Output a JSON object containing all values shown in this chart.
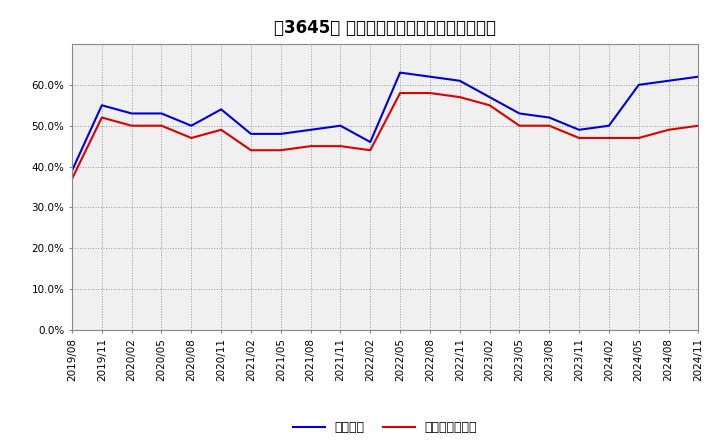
{
  "title": "［3645］ 固定比率、固定長期適合率の推移",
  "x_labels": [
    "2019/08",
    "2019/11",
    "2020/02",
    "2020/05",
    "2020/08",
    "2020/11",
    "2021/02",
    "2021/05",
    "2021/08",
    "2021/11",
    "2022/02",
    "2022/05",
    "2022/08",
    "2022/11",
    "2023/02",
    "2023/05",
    "2023/08",
    "2023/11",
    "2024/02",
    "2024/05",
    "2024/08",
    "2024/11"
  ],
  "blue_values": [
    0.39,
    0.55,
    0.53,
    0.53,
    0.5,
    0.54,
    0.48,
    0.48,
    0.49,
    0.5,
    0.46,
    0.63,
    0.62,
    0.61,
    0.57,
    0.53,
    0.52,
    0.49,
    0.5,
    0.6,
    0.61,
    0.62
  ],
  "red_values": [
    0.37,
    0.52,
    0.5,
    0.5,
    0.47,
    0.49,
    0.44,
    0.44,
    0.45,
    0.45,
    0.44,
    0.58,
    0.58,
    0.57,
    0.55,
    0.5,
    0.5,
    0.47,
    0.47,
    0.47,
    0.49,
    0.5
  ],
  "blue_color": "#0000dd",
  "red_color": "#dd0000",
  "ylim": [
    0.0,
    0.7
  ],
  "yticks": [
    0.0,
    0.1,
    0.2,
    0.3,
    0.4,
    0.5,
    0.6
  ],
  "legend_blue": "固定比率",
  "legend_red": "固定長期適合率",
  "bg_color": "#ffffff",
  "plot_bg_color": "#f0f0f0",
  "grid_color": "#999999",
  "title_fontsize": 12,
  "axis_fontsize": 7.5,
  "legend_fontsize": 9
}
